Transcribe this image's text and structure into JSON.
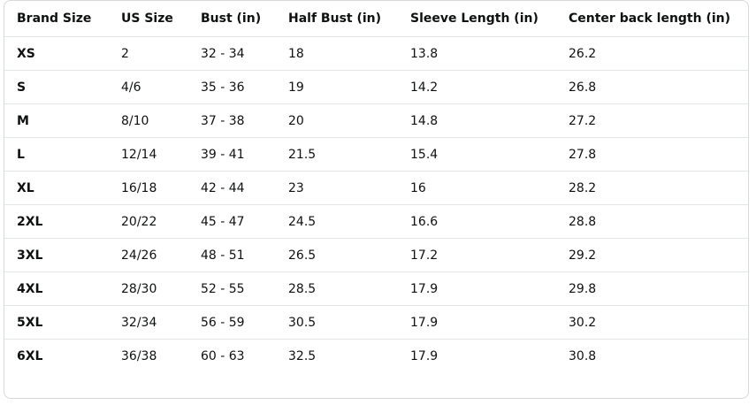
{
  "table": {
    "headers": [
      "Brand Size",
      "US Size",
      "Bust (in)",
      "Half Bust (in)",
      "Sleeve Length (in)",
      "Center back length (in)"
    ],
    "rows": [
      [
        "XS",
        "2",
        "32 - 34",
        "18",
        "13.8",
        "26.2"
      ],
      [
        "S",
        "4/6",
        "35 - 36",
        "19",
        "14.2",
        "26.8"
      ],
      [
        "M",
        "8/10",
        "37 - 38",
        "20",
        "14.8",
        "27.2"
      ],
      [
        "L",
        "12/14",
        "39 - 41",
        "21.5",
        "15.4",
        "27.8"
      ],
      [
        "XL",
        "16/18",
        "42 - 44",
        "23",
        "16",
        "28.2"
      ],
      [
        "2XL",
        "20/22",
        "45 - 47",
        "24.5",
        "16.6",
        "28.8"
      ],
      [
        "3XL",
        "24/26",
        "48 - 51",
        "26.5",
        "17.2",
        "29.2"
      ],
      [
        "4XL",
        "28/30",
        "52 - 55",
        "28.5",
        "17.9",
        "29.8"
      ],
      [
        "5XL",
        "32/34",
        "56 - 59",
        "30.5",
        "17.9",
        "30.2"
      ],
      [
        "6XL",
        "36/38",
        "60 - 63",
        "32.5",
        "17.9",
        "30.8"
      ]
    ]
  }
}
